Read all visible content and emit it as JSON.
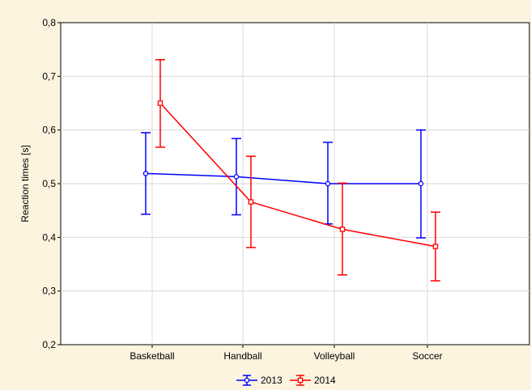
{
  "chart_data": {
    "type": "line",
    "title": "",
    "xlabel": "",
    "ylabel": "Reaction times [s]",
    "categories": [
      "Basketball",
      "Handball",
      "Volleyball",
      "Soccer"
    ],
    "ylim": [
      0.2,
      0.8
    ],
    "yticks": [
      "0,2",
      "0,3",
      "0,4",
      "0,5",
      "0,6",
      "0,7",
      "0,8"
    ],
    "ytick_values": [
      0.2,
      0.3,
      0.4,
      0.5,
      0.6,
      0.7,
      0.8
    ],
    "grid": true,
    "legend_position": "bottom-center",
    "series": [
      {
        "name": "2013",
        "color": "#0000ff",
        "marker": "circle",
        "values": [
          0.519,
          0.513,
          0.5,
          0.5
        ],
        "err_low": [
          0.443,
          0.442,
          0.425,
          0.399
        ],
        "err_high": [
          0.595,
          0.584,
          0.577,
          0.6
        ]
      },
      {
        "name": "2014",
        "color": "#ff0000",
        "marker": "square",
        "values": [
          0.65,
          0.466,
          0.415,
          0.383
        ],
        "err_low": [
          0.568,
          0.381,
          0.33,
          0.319
        ],
        "err_high": [
          0.731,
          0.551,
          0.501,
          0.447
        ]
      }
    ]
  }
}
